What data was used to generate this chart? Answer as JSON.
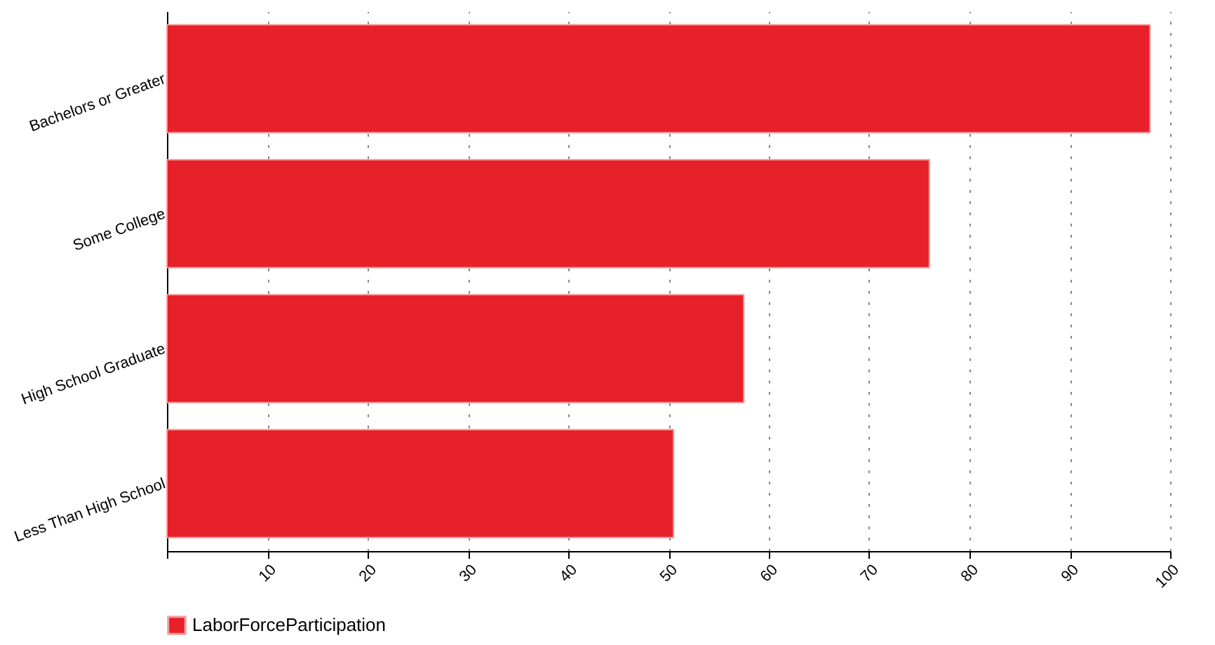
{
  "chart_data": {
    "type": "bar",
    "orientation": "horizontal",
    "categories": [
      "Bachelors or Greater",
      "Some College",
      "High School Graduate",
      "Less Than High School"
    ],
    "series": [
      {
        "name": "LaborForceParticipation",
        "color": "#e8202a",
        "values": [
          98,
          76,
          57.5,
          50.5
        ]
      }
    ],
    "xlim": [
      0,
      100
    ],
    "xticks": [
      {
        "value": 0,
        "label": null
      },
      10,
      20,
      30,
      40,
      50,
      60,
      70,
      80,
      90,
      100
    ],
    "grid": "x",
    "legend": "bottom"
  }
}
